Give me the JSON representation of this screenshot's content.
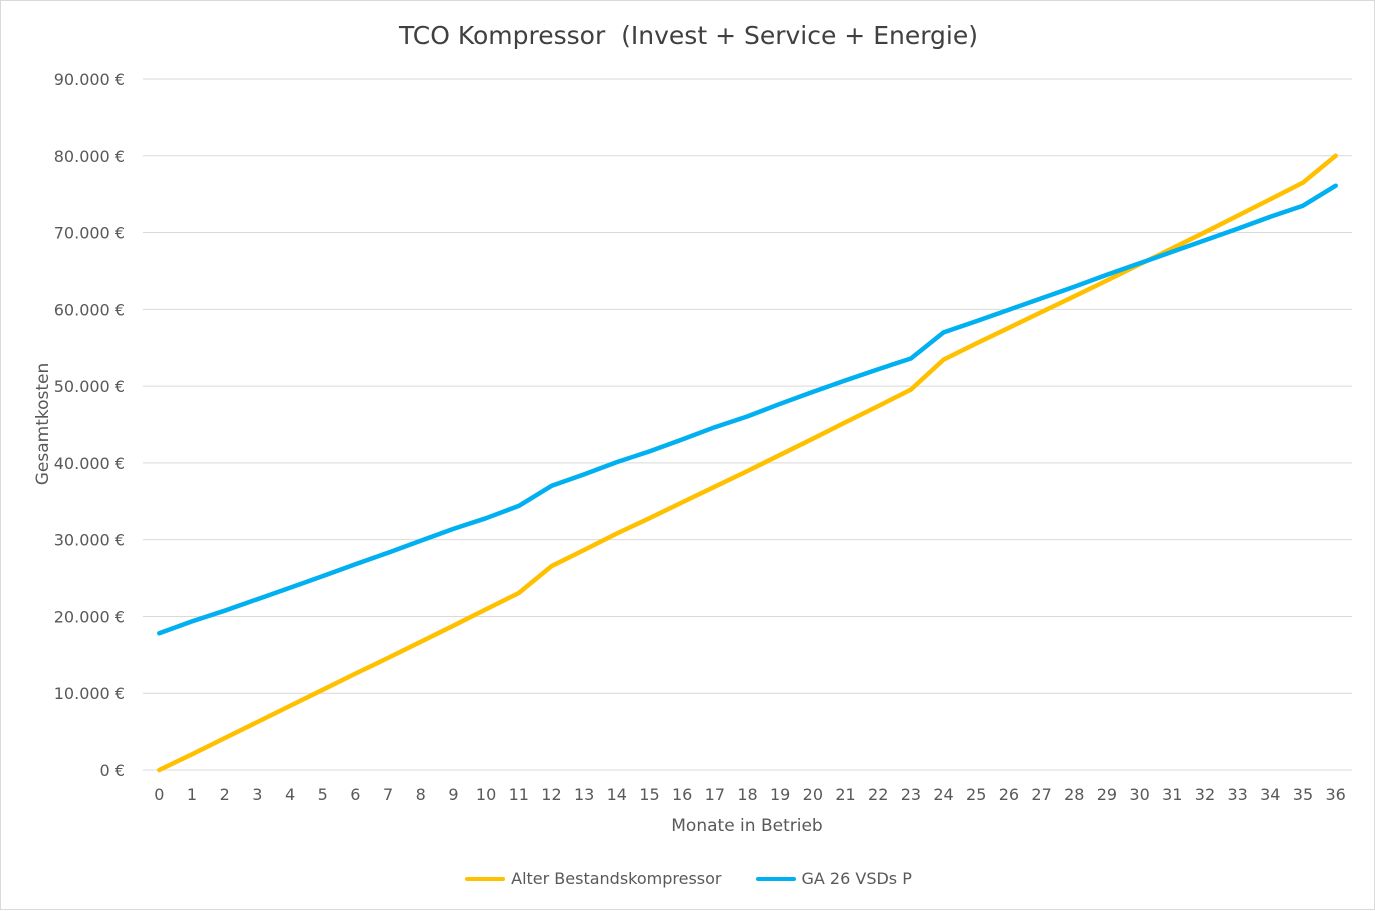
{
  "chart_data": {
    "type": "line",
    "title": "TCO Kompressor  (Invest + Service + Energie)",
    "xlabel": "Monate in Betrieb",
    "ylabel": "Gesamtkosten",
    "ylim": [
      0,
      90000
    ],
    "y_ticks": [
      "0 €",
      "10.000 €",
      "20.000 €",
      "30.000 €",
      "40.000 €",
      "50.000 €",
      "60.000 €",
      "70.000 €",
      "80.000 €",
      "90.000 €"
    ],
    "x": [
      0,
      1,
      2,
      3,
      4,
      5,
      6,
      7,
      8,
      9,
      10,
      11,
      12,
      13,
      14,
      15,
      16,
      17,
      18,
      19,
      20,
      21,
      22,
      23,
      24,
      25,
      26,
      27,
      28,
      29,
      30,
      31,
      32,
      33,
      34,
      35,
      36
    ],
    "grid": true,
    "legend_position": "bottom",
    "series": [
      {
        "name": "Alter Bestandskompressor",
        "color": "#FFC000",
        "values": [
          0,
          2050,
          4150,
          6250,
          8350,
          10450,
          12550,
          14600,
          16700,
          18800,
          20950,
          23050,
          26550,
          28650,
          30800,
          32800,
          34850,
          36900,
          38950,
          41050,
          43150,
          45300,
          47400,
          49550,
          53450,
          55550,
          57600,
          59650,
          61700,
          63750,
          65850,
          67950,
          70050,
          72200,
          74350,
          76500,
          80000
        ]
      },
      {
        "name": "GA 26 VSDs P",
        "color": "#00B0F0",
        "values": [
          17800,
          19350,
          20750,
          22250,
          23750,
          25250,
          26800,
          28300,
          29850,
          31400,
          32800,
          34400,
          37000,
          38500,
          40100,
          41500,
          43050,
          44650,
          46050,
          47700,
          49250,
          50750,
          52200,
          53600,
          57000,
          58450,
          59950,
          61450,
          62950,
          64500,
          66000,
          67500,
          69000,
          70500,
          72050,
          73500,
          76100
        ]
      }
    ]
  }
}
